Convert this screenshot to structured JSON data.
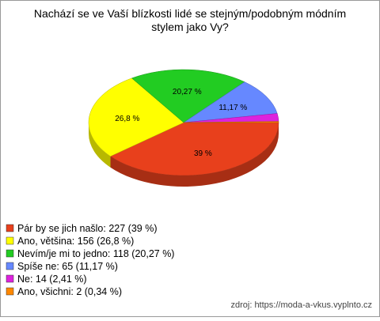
{
  "chart_data": {
    "type": "pie",
    "title": "Nachází se ve Vaší blízkosti lidé se stejným/podobným módním\nstylem jako Vy?",
    "categories": [
      "Pár by se jich našlo: 227 (39 %)",
      "Ano, většina: 156 (26,8 %)",
      "Nevím/je mi to jedno: 118 (20,27 %)",
      "Spíše ne: 65 (11,17 %)",
      "Ne: 14 (2,41 %)",
      "Ano, všichni: 2 (0,34 %)"
    ],
    "values": [
      39,
      26.8,
      20.27,
      11.17,
      2.41,
      0.34
    ],
    "value_labels": [
      "39 %",
      "26,8 %",
      "20,27 %",
      "11,17 %",
      null,
      null
    ],
    "colors": [
      "#e8401c",
      "#ffff00",
      "#22cc22",
      "#6688ff",
      "#dd22dd",
      "#ff8800"
    ],
    "source": "zdroj: https://moda-a-vkus.vyplnto.cz"
  }
}
